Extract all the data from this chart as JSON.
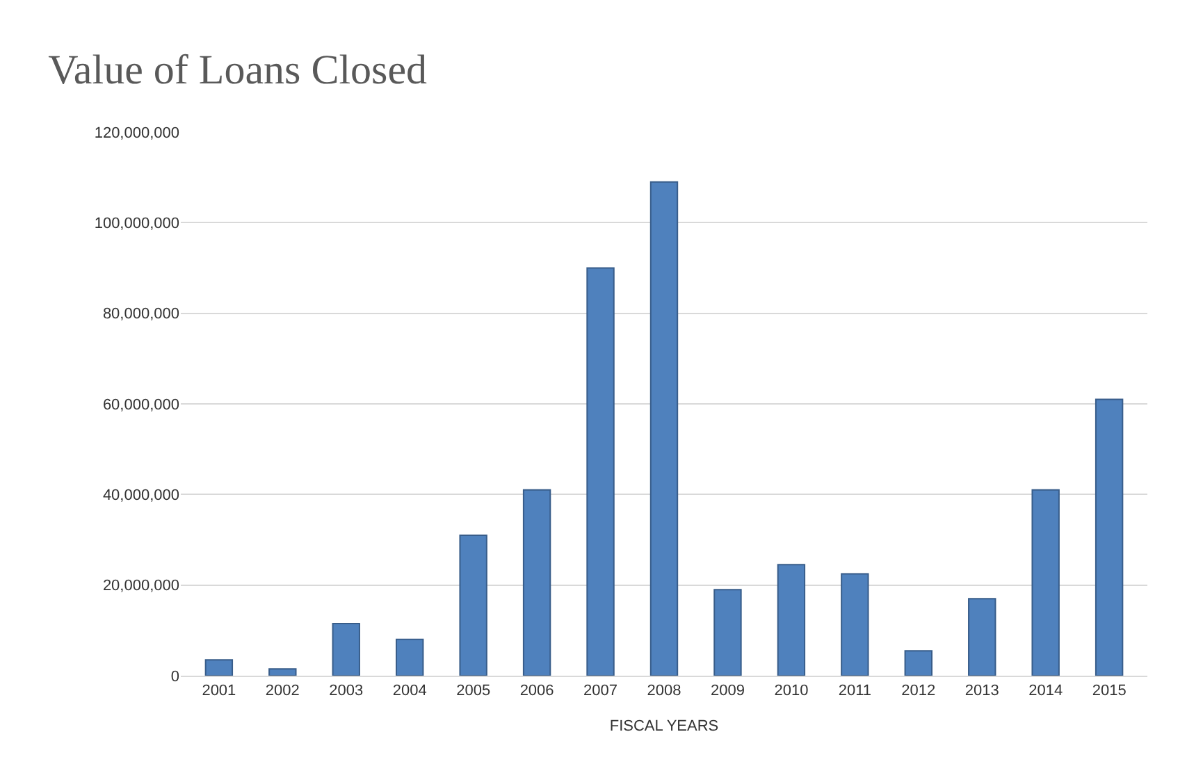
{
  "chart_data": {
    "type": "bar",
    "title": "Value of Loans Closed",
    "xlabel": "FISCAL YEARS",
    "categories": [
      "2001",
      "2002",
      "2003",
      "2004",
      "2005",
      "2006",
      "2007",
      "2008",
      "2009",
      "2010",
      "2011",
      "2012",
      "2013",
      "2014",
      "2015"
    ],
    "values": [
      3500000,
      1500000,
      11500000,
      8000000,
      31000000,
      41000000,
      90000000,
      109000000,
      19000000,
      24500000,
      22500000,
      5500000,
      17000000,
      41000000,
      61000000
    ],
    "color": "#4f81bd",
    "ylim": [
      0,
      120000000
    ],
    "yticks": [
      {
        "value": 0,
        "label": "0"
      },
      {
        "value": 20000000,
        "label": "20,000,000"
      },
      {
        "value": 40000000,
        "label": "40,000,000"
      },
      {
        "value": 60000000,
        "label": "60,000,000"
      },
      {
        "value": 80000000,
        "label": "80,000,000"
      },
      {
        "value": 100000000,
        "label": "100,000,000"
      },
      {
        "value": 120000000,
        "label": "120,000,000"
      }
    ],
    "grid": "y"
  }
}
